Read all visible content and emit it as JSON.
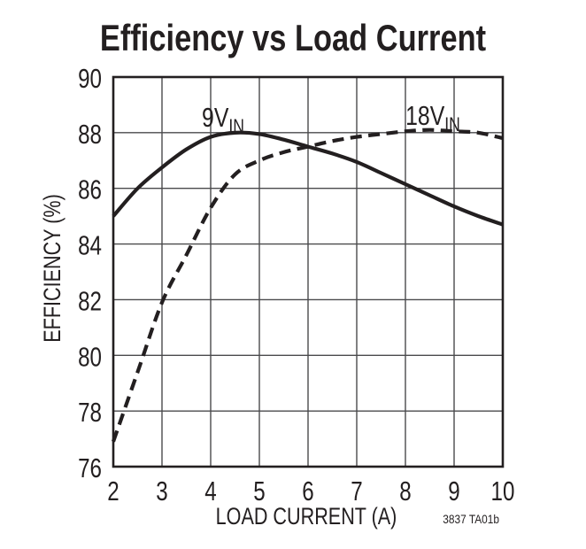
{
  "chart_data": {
    "type": "line",
    "title": "Efficiency vs Load Current",
    "xlabel": "LOAD CURRENT (A)",
    "ylabel": "EFFICIENCY (%)",
    "figure_id": "3837 TA01b",
    "xlim": [
      2,
      10
    ],
    "ylim": [
      76,
      90
    ],
    "x_ticks": [
      2,
      3,
      4,
      5,
      6,
      7,
      8,
      9,
      10
    ],
    "y_ticks": [
      90,
      88,
      86,
      84,
      82,
      80,
      78,
      76
    ],
    "grid": true,
    "legend_position": "inline-labels",
    "colors": {
      "ink": "#231f20",
      "grid": "#4a4a4c",
      "background": "#ffffff"
    },
    "x": [
      2,
      2.5,
      3,
      3.5,
      4,
      4.5,
      5,
      5.5,
      6,
      6.5,
      7,
      7.5,
      8,
      8.5,
      9,
      9.5,
      10
    ],
    "series": [
      {
        "id": "9vin",
        "label_main": "9V",
        "label_sub": "IN",
        "line_style": "solid",
        "values": [
          85.0,
          86.0,
          86.75,
          87.4,
          87.85,
          88.0,
          87.95,
          87.75,
          87.5,
          87.25,
          86.95,
          86.55,
          86.15,
          85.75,
          85.35,
          85.0,
          84.7
        ]
      },
      {
        "id": "18vin",
        "label_main": "18V",
        "label_sub": "IN",
        "line_style": "dashed",
        "values": [
          76.9,
          79.4,
          81.9,
          83.6,
          85.3,
          86.5,
          87.0,
          87.3,
          87.5,
          87.7,
          87.85,
          87.95,
          88.05,
          88.1,
          88.05,
          88.0,
          87.8
        ]
      }
    ]
  }
}
